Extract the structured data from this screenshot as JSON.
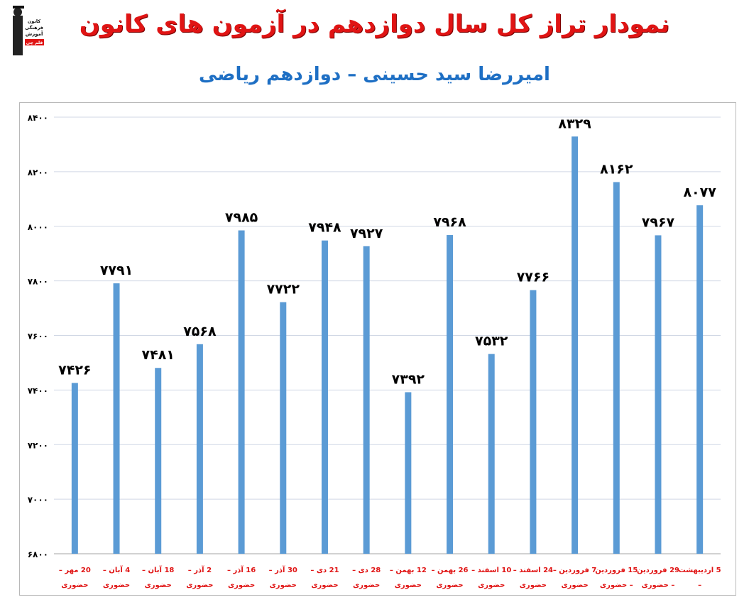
{
  "header": {
    "title": "نمودار تراز کل سال دوازدهم در آزمون های کانون",
    "subtitle": "امیررضا سید حسینی – دوازدهم ریاضی"
  },
  "logo": {
    "lines": [
      "کانون",
      "فرهنگی",
      "آموزش",
      "قلم چی"
    ]
  },
  "colors": {
    "bar": "#5b9bd5",
    "title": "#e01414",
    "subtitle": "#1e6fc4",
    "labels": "#e01414",
    "grid": "#d0d7e5"
  },
  "chart_data": {
    "type": "bar",
    "title": "نمودار تراز کل سال دوازدهم در آزمون های کانون",
    "subtitle": "امیررضا سید حسینی – دوازدهم ریاضی",
    "ylim": [
      6800,
      8400
    ],
    "yticks": [
      6800,
      7000,
      7200,
      7400,
      7600,
      7800,
      8000,
      8200,
      8400
    ],
    "ytick_labels": [
      "۶۸۰۰",
      "۷۰۰۰",
      "۷۲۰۰",
      "۷۴۰۰",
      "۷۶۰۰",
      "۷۸۰۰",
      "۸۰۰۰",
      "۸۲۰۰",
      "۸۴۰۰"
    ],
    "grid": true,
    "categories": [
      [
        "20 مهر –",
        "حضوری"
      ],
      [
        "4 آبان –",
        "حضوری"
      ],
      [
        "18 آبان –",
        "حضوری"
      ],
      [
        "2 آذر –",
        "حضوری"
      ],
      [
        "16 آذر –",
        "حضوری"
      ],
      [
        "30 آذر –",
        "حضوری"
      ],
      [
        "21 دی –",
        "حضوری"
      ],
      [
        "28 دی –",
        "حضوری"
      ],
      [
        "12 بهمن –",
        "حضوری"
      ],
      [
        "26 بهمن –",
        "حضوری"
      ],
      [
        "10 اسفند –",
        "حضوری"
      ],
      [
        "24 اسفند –",
        "حضوری"
      ],
      [
        "7 فروردین –",
        "حضوری"
      ],
      [
        "15 فروردین",
        "– حضوری"
      ],
      [
        "29 فروردین",
        "– حضوری"
      ],
      [
        "5 اردیبهشت",
        "–"
      ]
    ],
    "values": [
      7426,
      7791,
      7481,
      7568,
      7985,
      7722,
      7948,
      7927,
      7392,
      7968,
      7532,
      7766,
      8329,
      8162,
      7967,
      8077
    ],
    "value_labels": [
      "۷۴۲۶",
      "۷۷۹۱",
      "۷۴۸۱",
      "۷۵۶۸",
      "۷۹۸۵",
      "۷۷۲۲",
      "۷۹۴۸",
      "۷۹۲۷",
      "۷۳۹۲",
      "۷۹۶۸",
      "۷۵۳۲",
      "۷۷۶۶",
      "۸۳۲۹",
      "۸۱۶۲",
      "۷۹۶۷",
      "۸۰۷۷"
    ]
  }
}
